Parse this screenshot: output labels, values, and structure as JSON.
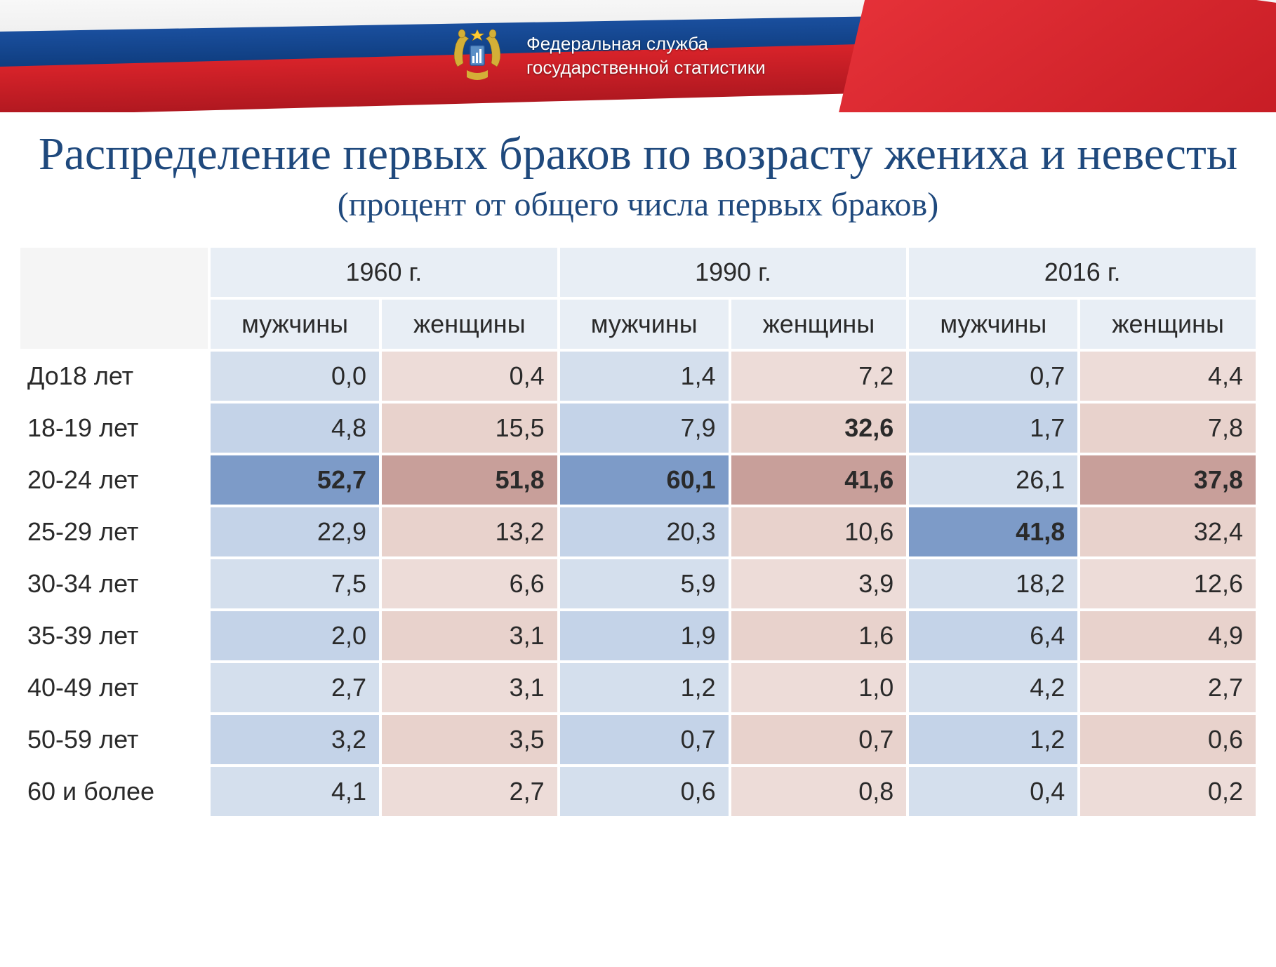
{
  "header": {
    "org_line1": "Федеральная служба",
    "org_line2": "государственной статистики"
  },
  "title": {
    "main": "Распределение  первых браков по возрасту жениха и невесты",
    "sub": "(процент от общего числа первых браков)"
  },
  "table": {
    "years": [
      "1960 г.",
      "1990 г.",
      "2016 г."
    ],
    "gender_labels": {
      "male": "мужчины",
      "female": "женщины"
    },
    "row_labels": [
      "До18 лет",
      "18-19 лет",
      "20-24 лет",
      "25-29 лет",
      "30-34 лет",
      "35-39 лет",
      "40-49 лет",
      "50-59 лет",
      "60 и более"
    ],
    "rows": [
      {
        "cells": [
          {
            "v": "0,0",
            "male": true
          },
          {
            "v": "0,4",
            "male": false
          },
          {
            "v": "1,4",
            "male": true
          },
          {
            "v": "7,2",
            "male": false
          },
          {
            "v": "0,7",
            "male": true
          },
          {
            "v": "4,4",
            "male": false
          }
        ]
      },
      {
        "cells": [
          {
            "v": "4,8",
            "male": true
          },
          {
            "v": "15,5",
            "male": false
          },
          {
            "v": "7,9",
            "male": true
          },
          {
            "v": "32,6",
            "male": false,
            "bold": true
          },
          {
            "v": "1,7",
            "male": true
          },
          {
            "v": "7,8",
            "male": false
          }
        ]
      },
      {
        "cells": [
          {
            "v": "52,7",
            "male": true,
            "bold": true,
            "hl": "male"
          },
          {
            "v": "51,8",
            "male": false,
            "bold": true,
            "hl": "female"
          },
          {
            "v": "60,1",
            "male": true,
            "bold": true,
            "hl": "male"
          },
          {
            "v": "41,6",
            "male": false,
            "bold": true,
            "hl": "female"
          },
          {
            "v": "26,1",
            "male": true
          },
          {
            "v": "37,8",
            "male": false,
            "bold": true,
            "hl": "female"
          }
        ]
      },
      {
        "cells": [
          {
            "v": "22,9",
            "male": true
          },
          {
            "v": "13,2",
            "male": false
          },
          {
            "v": "20,3",
            "male": true
          },
          {
            "v": "10,6",
            "male": false
          },
          {
            "v": "41,8",
            "male": true,
            "bold": true,
            "hl": "male"
          },
          {
            "v": "32,4",
            "male": false
          }
        ]
      },
      {
        "cells": [
          {
            "v": "7,5",
            "male": true
          },
          {
            "v": "6,6",
            "male": false
          },
          {
            "v": "5,9",
            "male": true
          },
          {
            "v": "3,9",
            "male": false
          },
          {
            "v": "18,2",
            "male": true
          },
          {
            "v": "12,6",
            "male": false
          }
        ]
      },
      {
        "cells": [
          {
            "v": "2,0",
            "male": true
          },
          {
            "v": "3,1",
            "male": false
          },
          {
            "v": "1,9",
            "male": true
          },
          {
            "v": "1,6",
            "male": false
          },
          {
            "v": "6,4",
            "male": true
          },
          {
            "v": "4,9",
            "male": false
          }
        ]
      },
      {
        "cells": [
          {
            "v": "2,7",
            "male": true
          },
          {
            "v": "3,1",
            "male": false
          },
          {
            "v": "1,2",
            "male": true
          },
          {
            "v": "1,0",
            "male": false
          },
          {
            "v": "4,2",
            "male": true
          },
          {
            "v": "2,7",
            "male": false
          }
        ]
      },
      {
        "cells": [
          {
            "v": "3,2",
            "male": true
          },
          {
            "v": "3,5",
            "male": false
          },
          {
            "v": "0,7",
            "male": true
          },
          {
            "v": "0,7",
            "male": false
          },
          {
            "v": "1,2",
            "male": true
          },
          {
            "v": "0,6",
            "male": false
          }
        ]
      },
      {
        "cells": [
          {
            "v": "4,1",
            "male": true
          },
          {
            "v": "2,7",
            "male": false
          },
          {
            "v": "0,6",
            "male": true
          },
          {
            "v": "0,8",
            "male": false
          },
          {
            "v": "0,4",
            "male": true
          },
          {
            "v": "0,2",
            "male": false
          }
        ]
      }
    ]
  },
  "colors": {
    "male_light": "#d4dfed",
    "male_alt": "#c4d3e8",
    "male_highlight": "#7d9bc8",
    "female_light": "#eddcd8",
    "female_alt": "#e8d2cc",
    "female_highlight": "#c89f9a",
    "header_bg": "#e8eef5",
    "title_color": "#1f497d",
    "text_color": "#2a2a2a",
    "flag_white": "#f8f8f8",
    "flag_blue": "#1a4f9e",
    "flag_red": "#d8232a"
  },
  "styling": {
    "title_main_fontsize": 66,
    "title_sub_fontsize": 48,
    "table_fontsize": 36,
    "header_fontsize": 26,
    "border_spacing": 4,
    "cell_padding": "14px 18px"
  }
}
